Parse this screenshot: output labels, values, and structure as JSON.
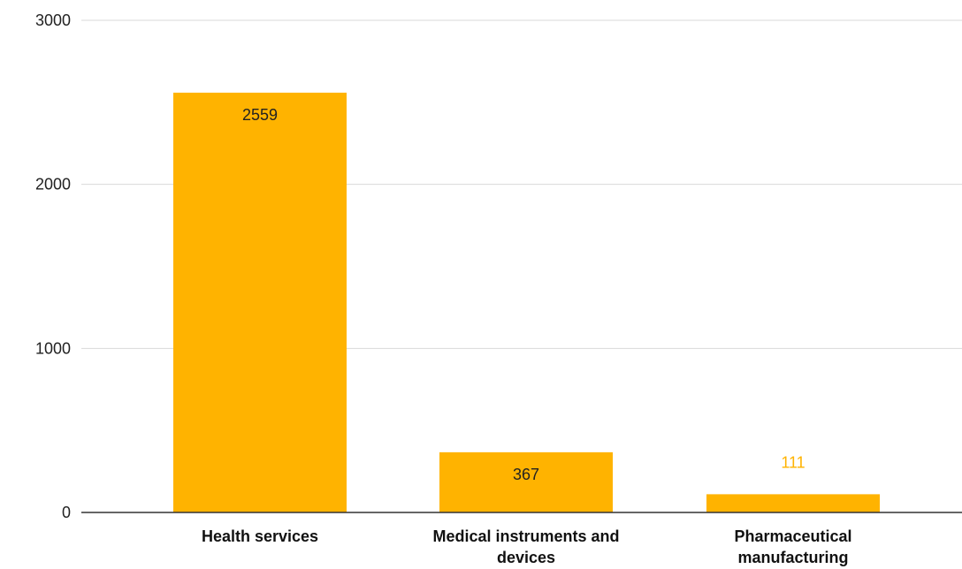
{
  "chart_data": {
    "type": "bar",
    "title": "",
    "xlabel": "",
    "ylabel": "",
    "categories": [
      "Health services",
      "Medical instruments and devices",
      "Pharmaceutical manufacturing"
    ],
    "category_lines": [
      [
        "Health services"
      ],
      [
        "Medical instruments and",
        "devices"
      ],
      [
        "Pharmaceutical",
        "manufacturing"
      ]
    ],
    "values": [
      2559,
      367,
      111
    ],
    "data_labels": [
      "2559",
      "367",
      "111"
    ],
    "ylim": [
      0,
      3000
    ],
    "yticks": [
      0,
      1000,
      2000,
      3000
    ],
    "ytick_labels": [
      "0",
      "1000",
      "2000",
      "3000"
    ],
    "grid": true,
    "legend": "none",
    "colors": {
      "bar": "#ffb300",
      "label_inside": "#222222",
      "label_outside": "#ffb300"
    }
  }
}
